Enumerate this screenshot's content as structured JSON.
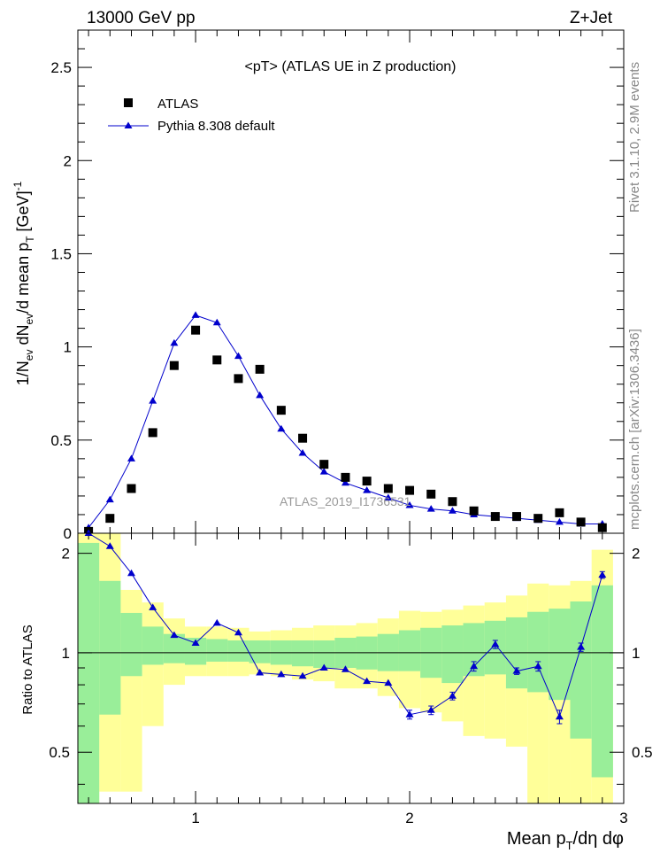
{
  "header": {
    "left": "13000 GeV pp",
    "right": "Z+Jet"
  },
  "side_labels": {
    "rivet": "Rivet 3.1.10, 2.9M events",
    "mcplots": "mcplots.cern.ch [arXiv:1306.3436]"
  },
  "chart_data": [
    {
      "type": "scatter",
      "panel": "main",
      "title": "<pT>  (ATLAS UE in Z production)",
      "watermark": "ATLAS_2019_I1736531",
      "ylabel": "1/N_ev dN_ev/d mean p_T [GeV]^-1",
      "xlim": [
        0.45,
        3.0
      ],
      "ylim": [
        0,
        2.7
      ],
      "y_ticks": [
        0,
        0.5,
        1,
        1.5,
        2,
        2.5
      ],
      "y_tick_labels": [
        "0",
        "0.5",
        "1",
        "1.5",
        "2",
        "2.5"
      ],
      "legend": {
        "placement": "top-left",
        "entries": [
          "ATLAS",
          "Pythia 8.308 default"
        ]
      },
      "series": [
        {
          "name": "ATLAS",
          "marker": "square",
          "color": "#000000",
          "x": [
            0.5,
            0.6,
            0.7,
            0.8,
            0.9,
            1.0,
            1.1,
            1.2,
            1.3,
            1.4,
            1.5,
            1.6,
            1.7,
            1.8,
            1.9,
            2.0,
            2.1,
            2.2,
            2.3,
            2.4,
            2.5,
            2.6,
            2.7,
            2.8,
            2.9
          ],
          "y": [
            0.01,
            0.08,
            0.24,
            0.54,
            0.9,
            1.09,
            0.93,
            0.83,
            0.88,
            0.66,
            0.51,
            0.37,
            0.3,
            0.28,
            0.24,
            0.23,
            0.21,
            0.17,
            0.12,
            0.09,
            0.09,
            0.08,
            0.11,
            0.06,
            0.03
          ]
        },
        {
          "name": "Pythia 8.308 default",
          "marker": "triangle",
          "color": "#0000cc",
          "x": [
            0.5,
            0.6,
            0.7,
            0.8,
            0.9,
            1.0,
            1.1,
            1.2,
            1.3,
            1.4,
            1.5,
            1.6,
            1.7,
            1.8,
            1.9,
            2.0,
            2.1,
            2.2,
            2.3,
            2.4,
            2.5,
            2.6,
            2.7,
            2.8,
            2.9
          ],
          "y": [
            0.03,
            0.18,
            0.4,
            0.71,
            1.02,
            1.17,
            1.13,
            0.95,
            0.74,
            0.56,
            0.43,
            0.33,
            0.27,
            0.23,
            0.19,
            0.15,
            0.13,
            0.12,
            0.1,
            0.09,
            0.08,
            0.07,
            0.06,
            0.05,
            0.05
          ]
        }
      ]
    },
    {
      "type": "line",
      "panel": "ratio",
      "xlabel": "Mean p_T/dη dφ",
      "ylabel": "Ratio to ATLAS",
      "xlim": [
        0.45,
        3.0
      ],
      "ylim": [
        0.35,
        2.3
      ],
      "x_ticks": [
        1,
        2,
        3
      ],
      "x_tick_labels": [
        "1",
        "2",
        "3"
      ],
      "y_ticks": [
        0.5,
        1,
        2
      ],
      "y_tick_labels": [
        "0.5",
        "1",
        "2"
      ],
      "reference_line": 1,
      "bin_edges": [
        0.45,
        0.55,
        0.65,
        0.75,
        0.85,
        0.95,
        1.05,
        1.15,
        1.25,
        1.35,
        1.45,
        1.55,
        1.65,
        1.75,
        1.85,
        1.95,
        2.05,
        2.15,
        2.25,
        2.35,
        2.45,
        2.55,
        2.65,
        2.75,
        2.85,
        2.95
      ],
      "bands": [
        {
          "name": "outer",
          "color": "#ffff99",
          "low": [
            0.35,
            0.38,
            0.38,
            0.6,
            0.8,
            0.85,
            0.85,
            0.85,
            0.86,
            0.85,
            0.83,
            0.82,
            0.78,
            0.78,
            0.74,
            0.68,
            0.66,
            0.62,
            0.56,
            0.55,
            0.52,
            0.35,
            0.35,
            0.35,
            0.35
          ],
          "high": [
            2.3,
            2.3,
            1.55,
            1.42,
            1.27,
            1.2,
            1.2,
            1.19,
            1.16,
            1.17,
            1.19,
            1.21,
            1.21,
            1.23,
            1.27,
            1.34,
            1.33,
            1.35,
            1.39,
            1.42,
            1.49,
            1.62,
            1.6,
            1.65,
            2.05
          ]
        },
        {
          "name": "inner",
          "color": "#99ee99",
          "low": [
            0.35,
            0.65,
            0.85,
            0.92,
            0.93,
            0.92,
            0.94,
            0.94,
            0.93,
            0.92,
            0.91,
            0.9,
            0.9,
            0.89,
            0.88,
            0.88,
            0.84,
            0.81,
            0.85,
            0.86,
            0.78,
            0.76,
            0.72,
            0.55,
            0.42
          ],
          "high": [
            2.15,
            1.65,
            1.32,
            1.2,
            1.14,
            1.11,
            1.1,
            1.09,
            1.09,
            1.09,
            1.09,
            1.09,
            1.11,
            1.12,
            1.14,
            1.17,
            1.19,
            1.21,
            1.23,
            1.25,
            1.28,
            1.33,
            1.36,
            1.43,
            1.6
          ]
        }
      ],
      "series": [
        {
          "name": "Pythia 8.308 default",
          "color": "#0000cc",
          "x": [
            0.5,
            0.6,
            0.7,
            0.8,
            0.9,
            1.0,
            1.1,
            1.2,
            1.3,
            1.4,
            1.5,
            1.6,
            1.7,
            1.8,
            1.9,
            2.0,
            2.1,
            2.2,
            2.3,
            2.4,
            2.5,
            2.6,
            2.7,
            2.8,
            2.9
          ],
          "y": [
            2.3,
            2.1,
            1.74,
            1.37,
            1.13,
            1.07,
            1.23,
            1.15,
            0.87,
            0.86,
            0.85,
            0.9,
            0.89,
            0.82,
            0.81,
            0.65,
            0.67,
            0.74,
            0.91,
            1.06,
            0.88,
            0.91,
            0.64,
            1.04,
            1.72
          ],
          "err": [
            0,
            0,
            0,
            0,
            0,
            0,
            0,
            0,
            0,
            0,
            0,
            0,
            0,
            0,
            0,
            0.02,
            0.02,
            0.02,
            0.03,
            0.03,
            0.02,
            0.03,
            0.03,
            0.03,
            0.04
          ]
        }
      ]
    }
  ]
}
